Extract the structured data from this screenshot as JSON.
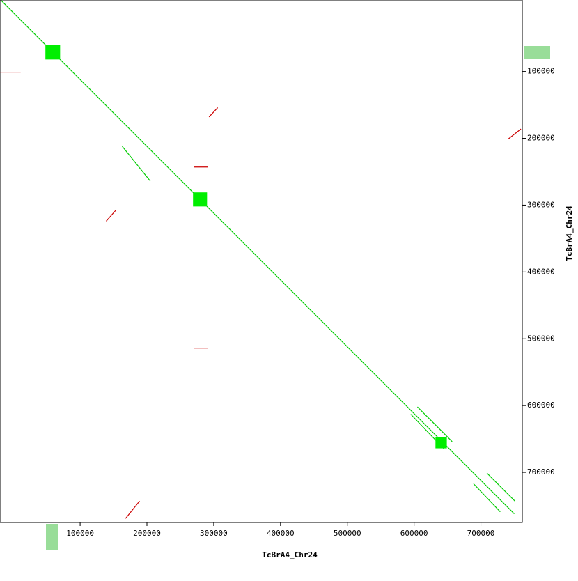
{
  "chart_data": {
    "type": "dotplot",
    "x_label": "TcBrA4_Chr24",
    "y_label": "TcBrA4_Chr24",
    "xlim": [
      -20000,
      762000
    ],
    "ylim": [
      -7000,
      775000
    ],
    "xticks": [
      100000,
      200000,
      300000,
      400000,
      500000,
      600000,
      700000
    ],
    "yticks": [
      100000,
      200000,
      300000,
      400000,
      500000,
      600000,
      700000
    ],
    "series": [
      {
        "color": "#00cc00",
        "x": [
          [
            -18000,
            750000
          ],
          [
            595000,
            645000
          ],
          [
            605000,
            657000
          ],
          [
            689000,
            729000
          ],
          [
            709000,
            751000
          ],
          [
            163000,
            205000
          ]
        ],
        "y": [
          [
            -6000,
            762000
          ],
          [
            613000,
            665000
          ],
          [
            602000,
            654000
          ],
          [
            717000,
            759000
          ],
          [
            701000,
            743000
          ],
          [
            212000,
            264000
          ]
        ]
      },
      {
        "color": "#cc0000",
        "x": [
          [
            293000,
            306000
          ],
          [
            139000,
            154000
          ],
          [
            741000,
            760000
          ],
          [
            -20000,
            11000
          ],
          [
            270000,
            291000
          ],
          [
            270000,
            291000
          ],
          [
            168000,
            189000
          ]
        ],
        "y": [
          [
            168000,
            154000
          ],
          [
            324000,
            307000
          ],
          [
            201000,
            186000
          ],
          [
            101000,
            101000
          ],
          [
            243000,
            243000
          ],
          [
            514000,
            514000
          ],
          [
            769000,
            743000
          ]
        ]
      }
    ],
    "blocks": {
      "color": "#00ee00",
      "x": [
        [
          48000,
          70000
        ],
        [
          269000,
          290000
        ],
        [
          632000,
          649000
        ]
      ],
      "y": [
        [
          60000,
          82000
        ],
        [
          281000,
          302000
        ],
        [
          647000,
          664000
        ]
      ]
    }
  }
}
